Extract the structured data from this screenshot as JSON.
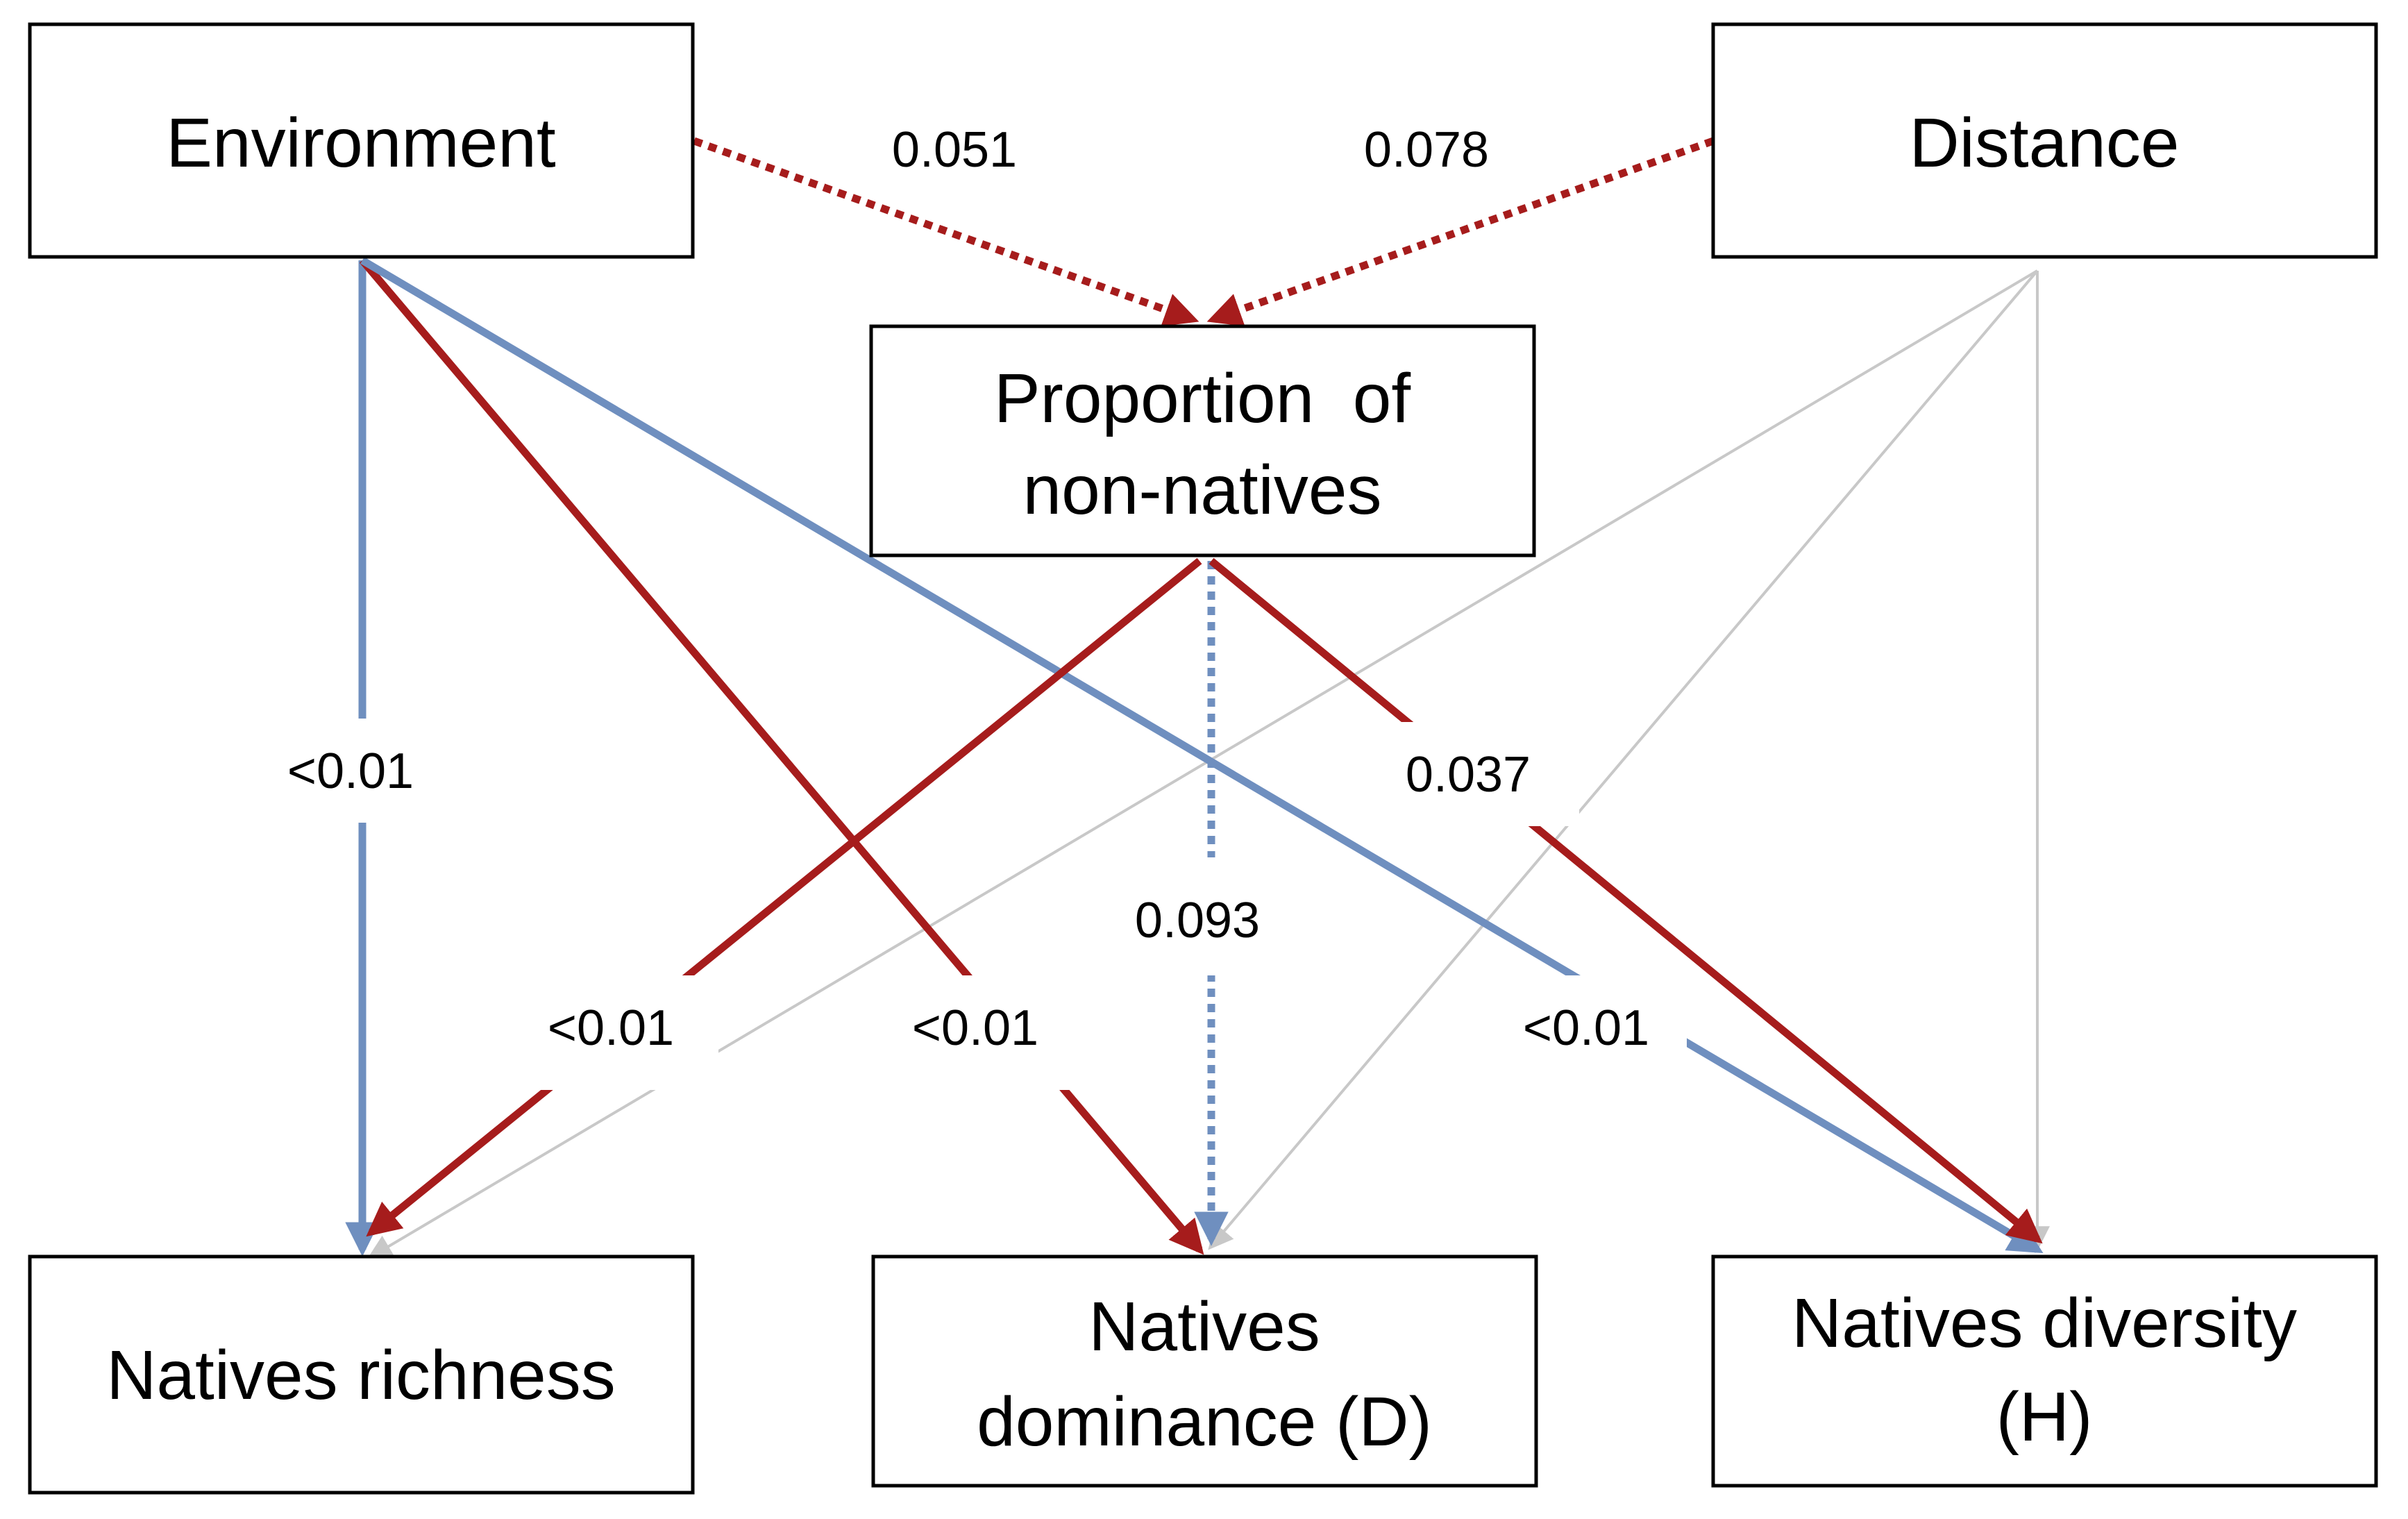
{
  "colors": {
    "negative_edge": "#6f8fbf",
    "positive_edge": "#a61c1c",
    "nonsignificant_edge": "#c8c8c8",
    "box_border": "#000000",
    "background": "#ffffff"
  },
  "nodes": {
    "environment": {
      "label": "Environment"
    },
    "distance": {
      "label": "Distance"
    },
    "proportion_nonnatives": {
      "line1": "Proportion  of",
      "line2": "non-natives"
    },
    "natives_richness": {
      "label": "Natives richness"
    },
    "natives_dominance": {
      "line1": "Natives",
      "line2": "dominance (D)"
    },
    "natives_diversity": {
      "line1": "Natives diversity",
      "line2": "(H)"
    }
  },
  "edges": {
    "env_to_proportion": {
      "label": "0.051",
      "color": "positive",
      "style": "dotted"
    },
    "dist_to_proportion": {
      "label": "0.078",
      "color": "positive",
      "style": "dotted"
    },
    "env_to_richness": {
      "label": "<0.01",
      "color": "negative",
      "style": "solid"
    },
    "env_to_dominance": {
      "label": "<0.01",
      "color": "positive",
      "style": "solid"
    },
    "env_to_diversity": {
      "label": "<0.01",
      "color": "negative",
      "style": "solid"
    },
    "prop_to_richness": {
      "label": "<0.01",
      "color": "positive",
      "style": "solid"
    },
    "prop_to_dominance": {
      "label": "0.093",
      "color": "negative",
      "style": "dotted"
    },
    "prop_to_diversity": {
      "label": "0.037",
      "color": "positive",
      "style": "solid"
    },
    "dist_to_richness": {
      "color": "nonsignificant",
      "style": "thin"
    },
    "dist_to_dominance": {
      "color": "nonsignificant",
      "style": "thin"
    },
    "dist_to_diversity": {
      "color": "nonsignificant",
      "style": "thin"
    }
  }
}
